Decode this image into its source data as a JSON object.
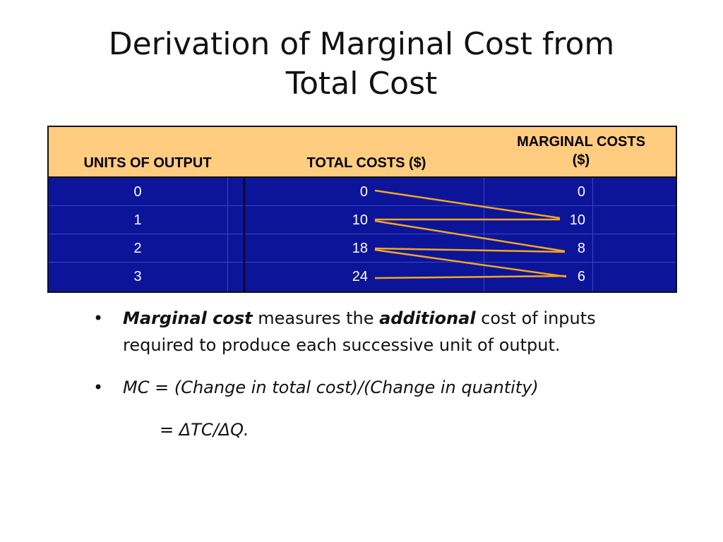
{
  "slide": {
    "title_line1": "Derivation of Marginal Cost from",
    "title_line2": "Total Cost"
  },
  "table": {
    "headers": {
      "units": "UNITS OF OUTPUT",
      "total_costs": "TOTAL  COSTS ($)",
      "marginal_line1": "MARGINAL COSTS",
      "marginal_line2": "($)"
    },
    "rows": [
      {
        "units": "0",
        "total_cost": "0",
        "marginal_cost": "0"
      },
      {
        "units": "1",
        "total_cost": "10",
        "marginal_cost": "10"
      },
      {
        "units": "2",
        "total_cost": "18",
        "marginal_cost": "8"
      },
      {
        "units": "3",
        "total_cost": "24",
        "marginal_cost": "6"
      }
    ],
    "colors": {
      "header_bg": "#ffcc80",
      "body_bg": "#0c1599",
      "connector": "#f5a623"
    }
  },
  "bullets": {
    "b1_term": "Marginal cost",
    "b1_mid": " measures the ",
    "b1_emph": "additional",
    "b1_rest": " cost of inputs required to produce each successive unit of output.",
    "b2_text": "MC = (Change in total cost)/(Change in quantity)",
    "equation": "= ΔTC/ΔQ."
  }
}
